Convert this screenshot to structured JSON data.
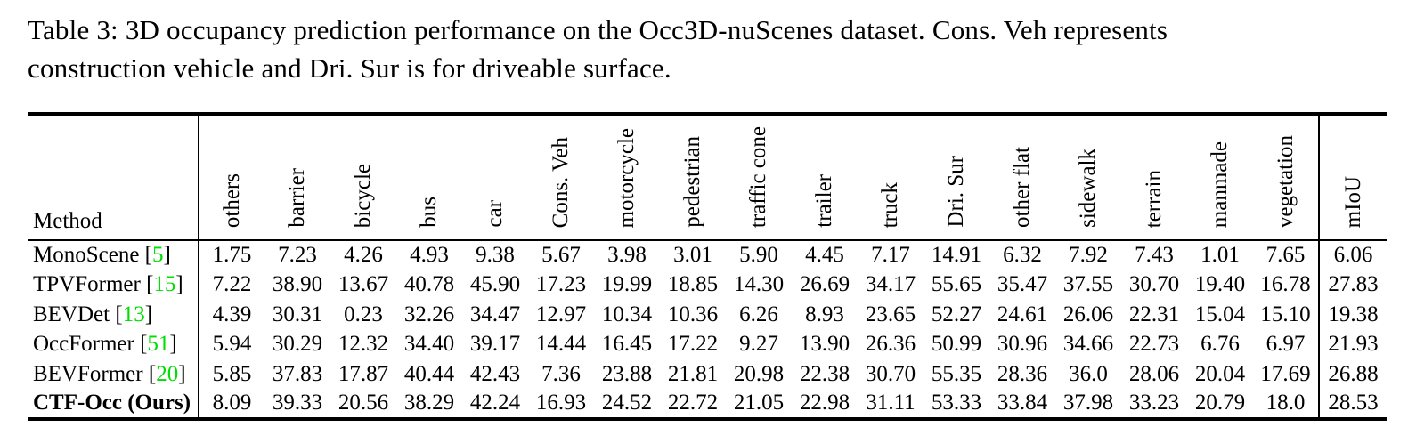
{
  "page": {
    "background": "#ffffff",
    "text_color": "#000000"
  },
  "caption": {
    "line1": "Table 3: 3D occupancy prediction performance on the Occ3D-nuScenes dataset. Cons. Veh represents",
    "line2": "construction vehicle and Dri. Sur is for driveable surface."
  },
  "table": {
    "citation_color": "#00dd00",
    "method_header": "Method",
    "miou_header": "mIoU",
    "rotated_headers": [
      "others",
      "barrier",
      "bicycle",
      "bus",
      "car",
      "Cons. Veh",
      "motorcycle",
      "pedestrian",
      "traffic cone",
      "trailer",
      "truck",
      "Dri. Sur",
      "other flat",
      "sidewalk",
      "terrain",
      "manmade",
      "vegetation"
    ],
    "rows": [
      {
        "method": "MonoScene",
        "cite": "5",
        "bold": false,
        "values": [
          "1.75",
          "7.23",
          "4.26",
          "4.93",
          "9.38",
          "5.67",
          "3.98",
          "3.01",
          "5.90",
          "4.45",
          "7.17",
          "14.91",
          "6.32",
          "7.92",
          "7.43",
          "1.01",
          "7.65"
        ],
        "miou": "6.06"
      },
      {
        "method": "TPVFormer",
        "cite": "15",
        "bold": false,
        "values": [
          "7.22",
          "38.90",
          "13.67",
          "40.78",
          "45.90",
          "17.23",
          "19.99",
          "18.85",
          "14.30",
          "26.69",
          "34.17",
          "55.65",
          "35.47",
          "37.55",
          "30.70",
          "19.40",
          "16.78"
        ],
        "miou": "27.83"
      },
      {
        "method": "BEVDet",
        "cite": "13",
        "bold": false,
        "values": [
          "4.39",
          "30.31",
          "0.23",
          "32.26",
          "34.47",
          "12.97",
          "10.34",
          "10.36",
          "6.26",
          "8.93",
          "23.65",
          "52.27",
          "24.61",
          "26.06",
          "22.31",
          "15.04",
          "15.10"
        ],
        "miou": "19.38"
      },
      {
        "method": "OccFormer",
        "cite": "51",
        "bold": false,
        "values": [
          "5.94",
          "30.29",
          "12.32",
          "34.40",
          "39.17",
          "14.44",
          "16.45",
          "17.22",
          "9.27",
          "13.90",
          "26.36",
          "50.99",
          "30.96",
          "34.66",
          "22.73",
          "6.76",
          "6.97"
        ],
        "miou": "21.93"
      },
      {
        "method": "BEVFormer",
        "cite": "20",
        "bold": false,
        "values": [
          "5.85",
          "37.83",
          "17.87",
          "40.44",
          "42.43",
          "7.36",
          "23.88",
          "21.81",
          "20.98",
          "22.38",
          "30.70",
          "55.35",
          "28.36",
          "36.0",
          "28.06",
          "20.04",
          "17.69"
        ],
        "miou": "26.88"
      },
      {
        "method": "CTF-Occ (Ours)",
        "cite": null,
        "bold": true,
        "values": [
          "8.09",
          "39.33",
          "20.56",
          "38.29",
          "42.24",
          "16.93",
          "24.52",
          "22.72",
          "21.05",
          "22.98",
          "31.11",
          "53.33",
          "33.84",
          "37.98",
          "33.23",
          "20.79",
          "18.0"
        ],
        "miou": "28.53"
      }
    ]
  }
}
